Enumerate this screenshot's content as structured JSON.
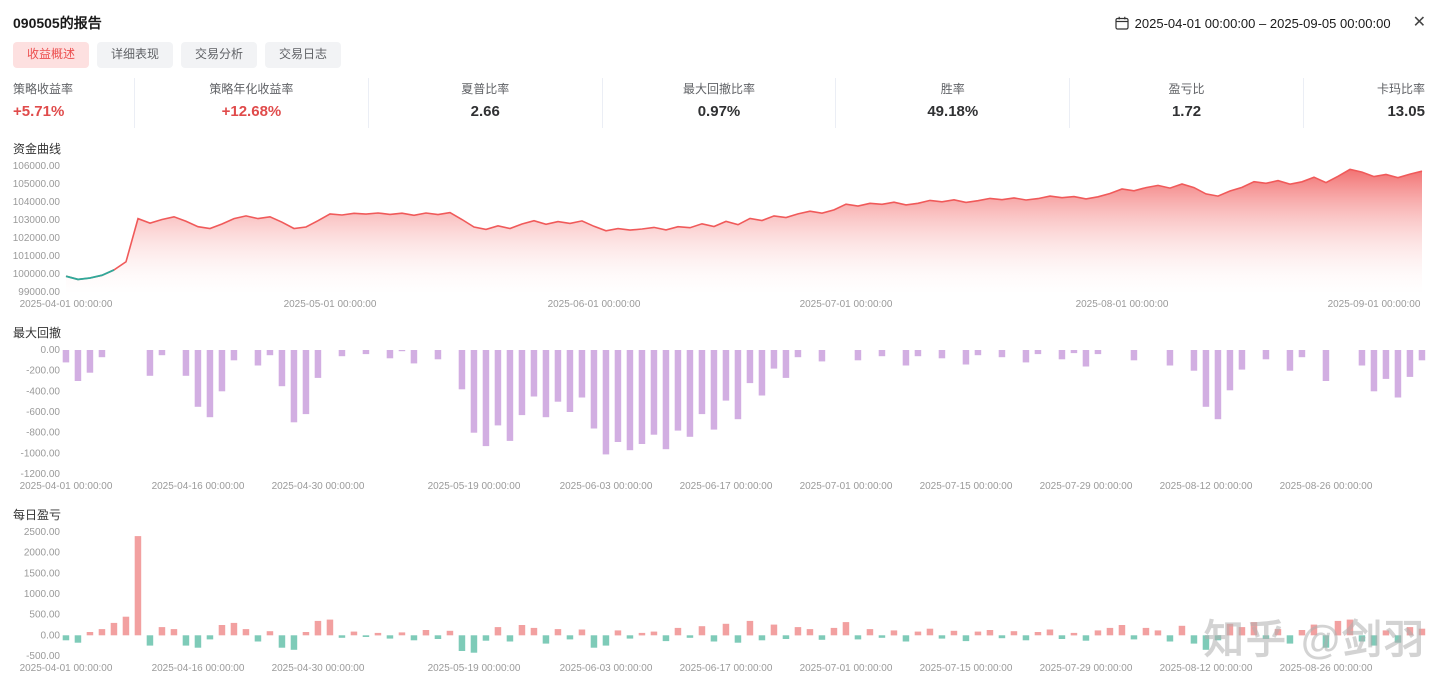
{
  "header": {
    "title": "090505的报告",
    "date_range": {
      "start": "2025-04-01 00:00:00",
      "separator": "–",
      "end": "2025-09-05 00:00:00"
    }
  },
  "icons": {
    "close": "✕",
    "calendar": "calendar-icon"
  },
  "tabs": [
    {
      "label": "收益概述",
      "active": true
    },
    {
      "label": "详细表现",
      "active": false
    },
    {
      "label": "交易分析",
      "active": false
    },
    {
      "label": "交易日志",
      "active": false
    }
  ],
  "stats": [
    {
      "label": "策略收益率",
      "value": "+5.71%",
      "highlight": true
    },
    {
      "label": "策略年化收益率",
      "value": "+12.68%",
      "highlight": true
    },
    {
      "label": "夏普比率",
      "value": "2.66",
      "highlight": false
    },
    {
      "label": "最大回撤比率",
      "value": "0.97%",
      "highlight": false
    },
    {
      "label": "胜率",
      "value": "49.18%",
      "highlight": false
    },
    {
      "label": "盈亏比",
      "value": "1.72",
      "highlight": false
    },
    {
      "label": "卡玛比率",
      "value": "13.05",
      "highlight": false
    }
  ],
  "watermark": "知乎 @剑羽",
  "chart_data": [
    {
      "type": "area",
      "title": "资金曲线",
      "ylim": [
        99000,
        106000
      ],
      "yticks": [
        "106000.00",
        "105000.00",
        "104000.00",
        "103000.00",
        "102000.00",
        "101000.00",
        "100000.00",
        "99000.00"
      ],
      "xticks": [
        {
          "label": "2025-04-01 00:00:00",
          "index": 0
        },
        {
          "label": "2025-05-01 00:00:00",
          "index": 22
        },
        {
          "label": "2025-06-01 00:00:00",
          "index": 44
        },
        {
          "label": "2025-07-01 00:00:00",
          "index": 65
        },
        {
          "label": "2025-08-01 00:00:00",
          "index": 88
        },
        {
          "label": "2025-09-01 00:00:00",
          "index": 109
        }
      ],
      "start_segment_len": 5,
      "colors": {
        "line": "#f05a5a",
        "start_line": "#2fa99a",
        "fill_top": "rgba(240,90,90,0.85)",
        "fill_bottom": "rgba(255,240,240,0.05)"
      },
      "values": [
        99880,
        99700,
        99780,
        99930,
        100230,
        100680,
        103080,
        102830,
        103030,
        103180,
        102930,
        102630,
        102530,
        102780,
        103080,
        103230,
        103080,
        103180,
        102880,
        102530,
        102610,
        102960,
        103340,
        103280,
        103370,
        103330,
        103390,
        103310,
        103380,
        103260,
        103390,
        103300,
        103410,
        103030,
        102610,
        102480,
        102680,
        102530,
        102780,
        102960,
        102760,
        102910,
        102810,
        102950,
        102650,
        102400,
        102520,
        102440,
        102500,
        102590,
        102450,
        102630,
        102570,
        102790,
        102640,
        102920,
        102740,
        103090,
        102970,
        103230,
        103140,
        103340,
        103490,
        103380,
        103560,
        103880,
        103780,
        103930,
        103870,
        103990,
        103840,
        103930,
        104090,
        104010,
        104120,
        103980,
        104070,
        104200,
        104130,
        104230,
        104110,
        104190,
        104330,
        104240,
        104300,
        104170,
        104290,
        104470,
        104720,
        104620,
        104800,
        104920,
        104770,
        105000,
        104800,
        104450,
        104330,
        104610,
        104810,
        105130,
        105040,
        105190,
        104990,
        105120,
        105380,
        105080,
        105430,
        105810,
        105660,
        105410,
        105530,
        105350,
        105550,
        105710
      ]
    },
    {
      "type": "bar",
      "title": "最大回撤",
      "ylim": [
        -1200,
        0
      ],
      "yticks": [
        "0.00",
        "-200.00",
        "-400.00",
        "-600.00",
        "-800.00",
        "-1000.00",
        "-1200.00"
      ],
      "xticks": [
        {
          "label": "2025-04-01 00:00:00",
          "index": 0
        },
        {
          "label": "2025-04-16 00:00:00",
          "index": 11
        },
        {
          "label": "2025-04-30 00:00:00",
          "index": 21
        },
        {
          "label": "2025-05-19 00:00:00",
          "index": 34
        },
        {
          "label": "2025-06-03 00:00:00",
          "index": 45
        },
        {
          "label": "2025-06-17 00:00:00",
          "index": 55
        },
        {
          "label": "2025-07-01 00:00:00",
          "index": 65
        },
        {
          "label": "2025-07-15 00:00:00",
          "index": 75
        },
        {
          "label": "2025-07-29 00:00:00",
          "index": 85
        },
        {
          "label": "2025-08-12 00:00:00",
          "index": 95
        },
        {
          "label": "2025-08-26 00:00:00",
          "index": 105
        }
      ],
      "colors": {
        "bar": "#d2aee2",
        "pos": "#d2aee2",
        "neg": "#d2aee2"
      },
      "values": [
        -120,
        -300,
        -220,
        -70,
        0,
        0,
        0,
        -250,
        -50,
        0,
        -250,
        -550,
        -650,
        -400,
        -100,
        0,
        -150,
        -50,
        -350,
        -700,
        -620,
        -270,
        0,
        -60,
        0,
        -40,
        0,
        -80,
        -10,
        -130,
        0,
        -90,
        0,
        -380,
        -800,
        -930,
        -730,
        -880,
        -630,
        -450,
        -650,
        -500,
        -600,
        -460,
        -760,
        -1010,
        -890,
        -970,
        -910,
        -820,
        -960,
        -780,
        -840,
        -620,
        -770,
        -490,
        -670,
        -320,
        -440,
        -180,
        -270,
        -70,
        0,
        -110,
        0,
        0,
        -100,
        0,
        -60,
        0,
        -150,
        -60,
        0,
        -80,
        0,
        -140,
        -50,
        0,
        -70,
        0,
        -120,
        -40,
        0,
        -90,
        -30,
        -160,
        -40,
        0,
        0,
        -100,
        0,
        0,
        -150,
        0,
        -200,
        -550,
        -670,
        -390,
        -190,
        0,
        -90,
        0,
        -200,
        -70,
        0,
        -300,
        0,
        0,
        -150,
        -400,
        -280,
        -460,
        -260,
        -100
      ]
    },
    {
      "type": "bar",
      "title": "每日盈亏",
      "ylim": [
        -500,
        2500
      ],
      "yticks": [
        "2500.00",
        "2000.00",
        "1500.00",
        "1000.00",
        "500.00",
        "0.00",
        "-500.00"
      ],
      "xticks": [
        {
          "label": "2025-04-01 00:00:00",
          "index": 0
        },
        {
          "label": "2025-04-16 00:00:00",
          "index": 11
        },
        {
          "label": "2025-04-30 00:00:00",
          "index": 21
        },
        {
          "label": "2025-05-19 00:00:00",
          "index": 34
        },
        {
          "label": "2025-06-03 00:00:00",
          "index": 45
        },
        {
          "label": "2025-06-17 00:00:00",
          "index": 55
        },
        {
          "label": "2025-07-01 00:00:00",
          "index": 65
        },
        {
          "label": "2025-07-15 00:00:00",
          "index": 75
        },
        {
          "label": "2025-07-29 00:00:00",
          "index": 85
        },
        {
          "label": "2025-08-12 00:00:00",
          "index": 95
        },
        {
          "label": "2025-08-26 00:00:00",
          "index": 105
        }
      ],
      "colors": {
        "pos": "#f2a0a0",
        "neg": "#7ecbb8"
      },
      "values": [
        -120,
        -180,
        80,
        150,
        300,
        450,
        2400,
        -250,
        200,
        150,
        -250,
        -300,
        -100,
        250,
        300,
        150,
        -150,
        100,
        -300,
        -350,
        80,
        350,
        380,
        -60,
        90,
        -40,
        60,
        -80,
        70,
        -120,
        130,
        -90,
        110,
        -380,
        -420,
        -130,
        200,
        -150,
        250,
        180,
        -200,
        150,
        -100,
        140,
        -300,
        -250,
        120,
        -80,
        60,
        90,
        -140,
        180,
        -60,
        220,
        -150,
        280,
        -180,
        350,
        -120,
        260,
        -90,
        200,
        150,
        -110,
        180,
        320,
        -100,
        150,
        -60,
        120,
        -150,
        90,
        160,
        -80,
        110,
        -140,
        90,
        130,
        -70,
        100,
        -120,
        80,
        140,
        -90,
        60,
        -130,
        120,
        180,
        250,
        -100,
        180,
        120,
        -150,
        230,
        -200,
        -350,
        -120,
        280,
        200,
        320,
        -90,
        150,
        -200,
        130,
        260,
        -300,
        350,
        380,
        -150,
        -250,
        120,
        -180,
        200,
        160
      ]
    }
  ]
}
